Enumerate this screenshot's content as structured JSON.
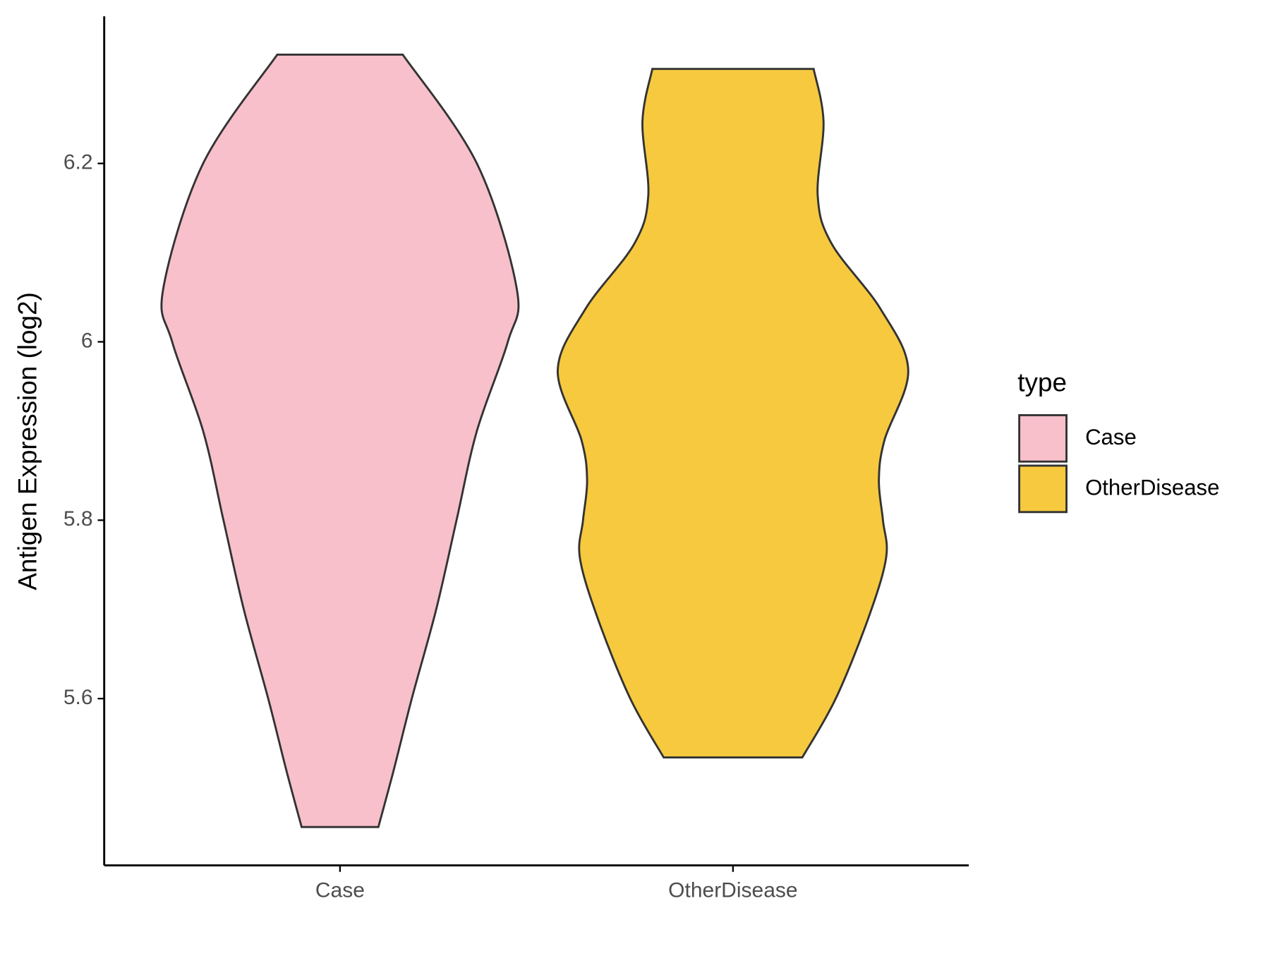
{
  "chart_data": {
    "type": "violin",
    "y_label": "Antigen Expression (log2)",
    "categories": [
      "Case",
      "OtherDisease"
    ],
    "legend_title": "type",
    "ylim": [
      5.413,
      6.365
    ],
    "yticks": [
      5.6,
      5.8,
      6.0,
      6.2
    ],
    "series": [
      {
        "name": "Case",
        "color": "#F8C0CB",
        "y": [
          6.322,
          6.2,
          6.059,
          6.0,
          5.9,
          5.8,
          5.7,
          5.6,
          5.52,
          5.456
        ],
        "width": [
          0.355,
          0.774,
          1,
          0.949,
          0.774,
          0.659,
          0.544,
          0.406,
          0.304,
          0.217
        ]
      },
      {
        "name": "OtherDisease",
        "color": "#F6C93F",
        "y": [
          6.306,
          6.247,
          6.164,
          6.11,
          6.037,
          5.968,
          5.89,
          5.845,
          5.8,
          5.758,
          5.69,
          5.6,
          5.534
        ],
        "width": [
          0.456,
          0.512,
          0.479,
          0.558,
          0.834,
          0.991,
          0.857,
          0.825,
          0.848,
          0.866,
          0.765,
          0.581,
          0.392
        ]
      }
    ]
  }
}
